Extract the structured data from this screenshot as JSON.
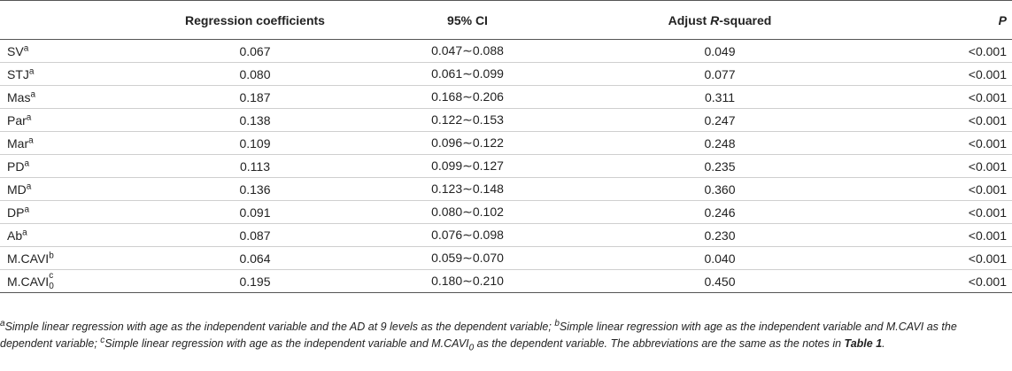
{
  "table": {
    "headers": {
      "variable": "",
      "coef": "Regression coefficients",
      "ci": "95% CI",
      "r2_pre": "Adjust ",
      "r2_italic": "R",
      "r2_post": "-squared",
      "p": "P"
    },
    "rows": [
      {
        "name": "SV",
        "sup": "a",
        "coef": "0.067",
        "ci": "0.047∼0.088",
        "r2": "0.049",
        "p": "<0.001"
      },
      {
        "name": "STJ",
        "sup": "a",
        "coef": "0.080",
        "ci": "0.061∼0.099",
        "r2": "0.077",
        "p": "<0.001"
      },
      {
        "name": "Mas",
        "sup": "a",
        "coef": "0.187",
        "ci": "0.168∼0.206",
        "r2": "0.311",
        "p": "<0.001"
      },
      {
        "name": "Par",
        "sup": "a",
        "coef": "0.138",
        "ci": "0.122∼0.153",
        "r2": "0.247",
        "p": "<0.001"
      },
      {
        "name": "Mar",
        "sup": "a",
        "coef": "0.109",
        "ci": "0.096∼0.122",
        "r2": "0.248",
        "p": "<0.001"
      },
      {
        "name": "PD",
        "sup": "a",
        "coef": "0.113",
        "ci": "0.099∼0.127",
        "r2": "0.235",
        "p": "<0.001"
      },
      {
        "name": "MD",
        "sup": "a",
        "coef": "0.136",
        "ci": "0.123∼0.148",
        "r2": "0.360",
        "p": "<0.001"
      },
      {
        "name": "DP",
        "sup": "a",
        "coef": "0.091",
        "ci": "0.080∼0.102",
        "r2": "0.246",
        "p": "<0.001"
      },
      {
        "name": "Ab",
        "sup": "a",
        "coef": "0.087",
        "ci": "0.076∼0.098",
        "r2": "0.230",
        "p": "<0.001"
      },
      {
        "name": "M.CAVI",
        "sup": "b",
        "coef": "0.064",
        "ci": "0.059∼0.070",
        "r2": "0.040",
        "p": "<0.001"
      }
    ],
    "last_row": {
      "name": "M.CAVI",
      "sup": "c",
      "sub": "0",
      "coef": "0.195",
      "ci": "0.180∼0.210",
      "r2": "0.450",
      "p": "<0.001"
    }
  },
  "notes": {
    "a_mark": "a",
    "a_text": "Simple linear regression with age as the independent variable and the AD at 9 levels as the dependent variable; ",
    "b_mark": "b",
    "b_text": "Simple linear regression with age as the independent variable and M.CAVI as the dependent variable; ",
    "c_mark": "c",
    "c_text_1": "Simple linear regression with age as the independent variable and M.CAVI",
    "c_sub": "0",
    "c_text_2": " as the dependent variable. The abbreviations are the same as the notes in ",
    "ref": "Table 1",
    "end": "."
  }
}
